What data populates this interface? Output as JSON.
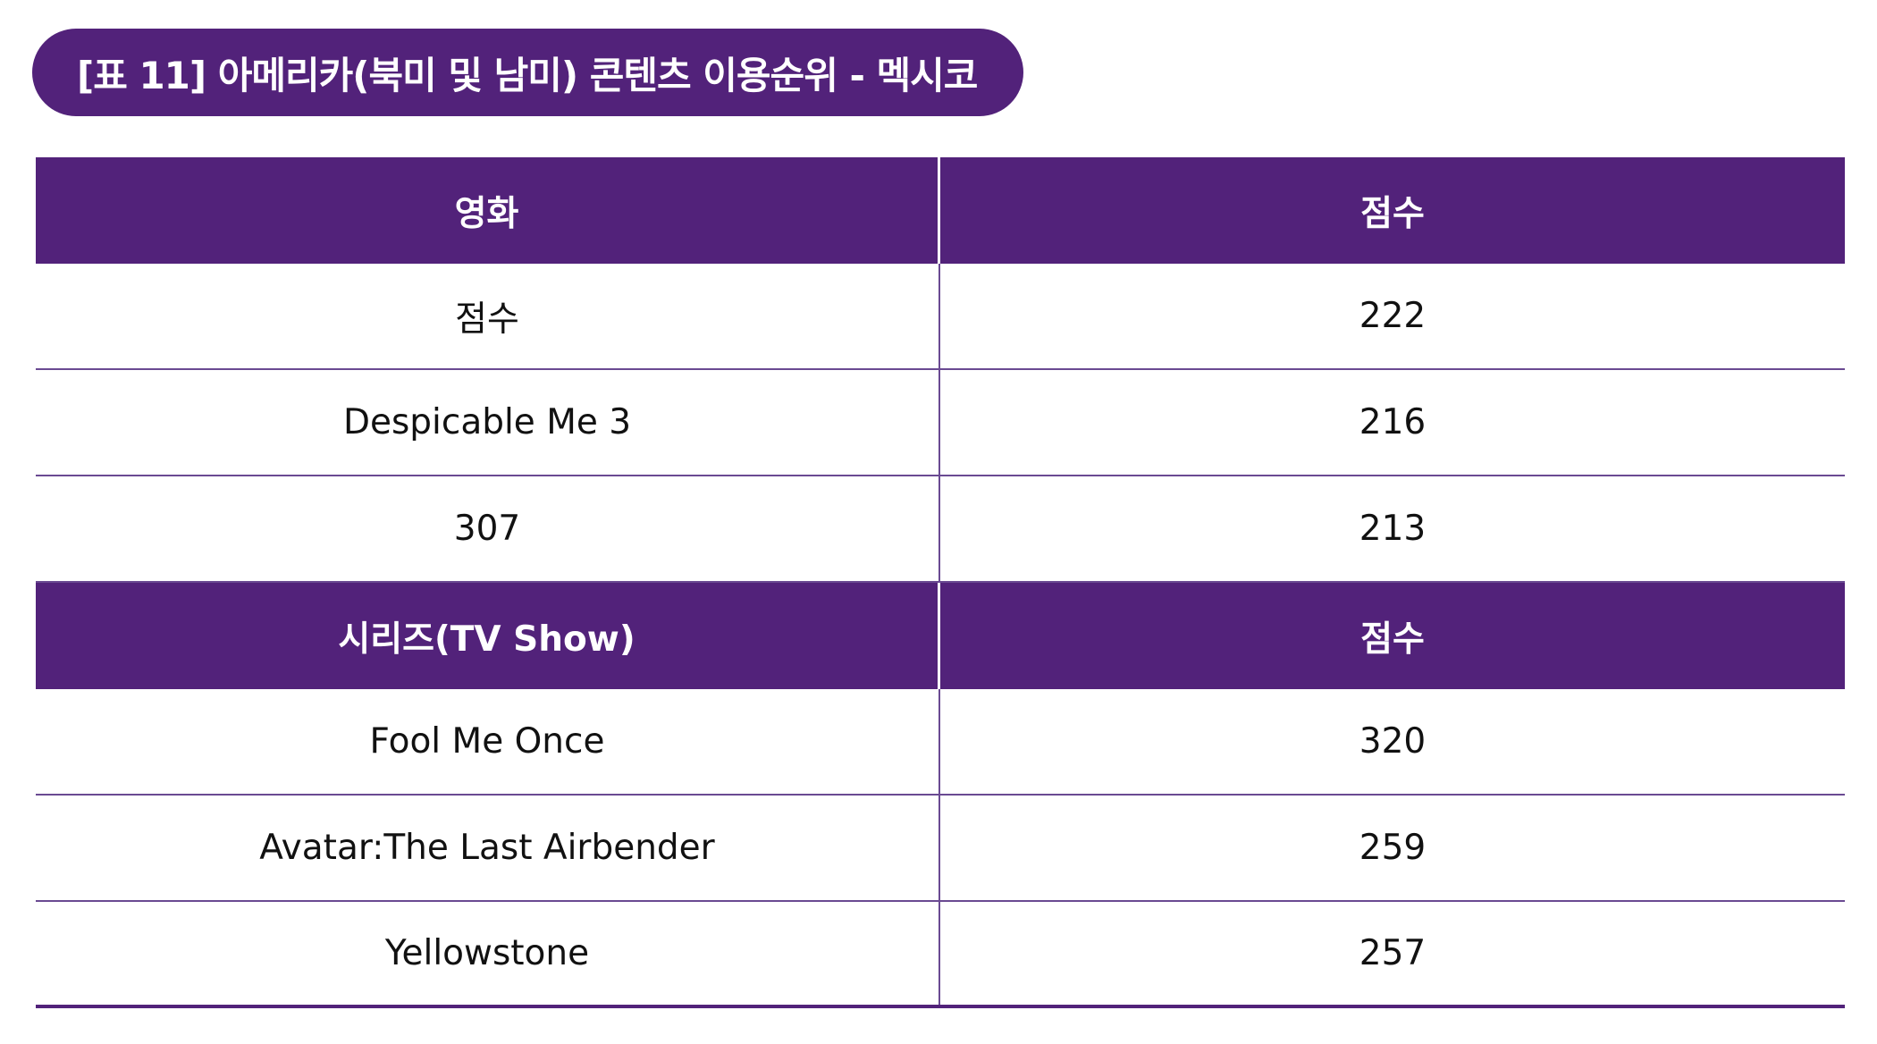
{
  "title": "[표 11] 아메리카(북미 및 남미) 콘텐츠 이용순위 - 멕시코",
  "colors": {
    "accent": "#52227a",
    "divider": "#6a4a92",
    "header_text": "#ffffff",
    "body_text": "#111111"
  },
  "movies": {
    "header": {
      "name": "영화",
      "score": "점수"
    },
    "rows": [
      {
        "name": "점수",
        "score": "222"
      },
      {
        "name": "Despicable Me 3",
        "score": "216"
      },
      {
        "name": "307",
        "score": "213"
      }
    ]
  },
  "series": {
    "header": {
      "name": "시리즈(TV Show)",
      "score": "점수"
    },
    "rows": [
      {
        "name": "Fool Me Once",
        "score": "320"
      },
      {
        "name": "Avatar:The Last Airbender",
        "score": "259"
      },
      {
        "name": "Yellowstone",
        "score": "257"
      }
    ]
  }
}
